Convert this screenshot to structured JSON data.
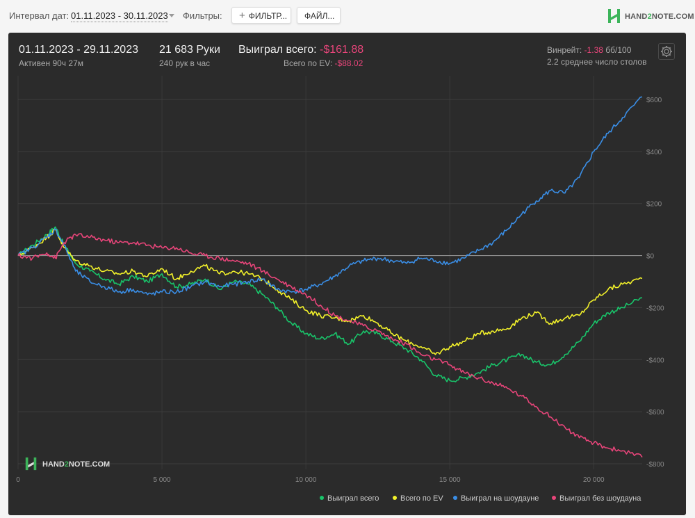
{
  "toolbar": {
    "date_label": "Интервал дат:",
    "date_value": "01.11.2023 - 30.11.2023",
    "filters_label": "Фильтры:",
    "filter_button": "ФИЛЬТР...",
    "file_button": "ФАЙЛ...",
    "brand_pre": "HAND",
    "brand_two": "2",
    "brand_post": "NOTE.COM"
  },
  "summary": {
    "period": "01.11.2023 - 29.11.2023",
    "active": "Активен 90ч 27м",
    "hands": "21 683 Руки",
    "hands_per_hour": "240 рук в час",
    "won_label": "Выиграл всего:",
    "won_value": "-$161.88",
    "ev_label": "Всего по EV:",
    "ev_value": "-$88.02",
    "winrate_label": "Винрейт:",
    "winrate_value": "-1.38",
    "winrate_unit": "бб/100",
    "tables": "2.2 среднее число столов"
  },
  "watermark": {
    "pre": "HAND",
    "two": "2",
    "post": "NOTE.COM"
  },
  "icons": {
    "settings": "gear-icon",
    "add": "plus-icon",
    "dropdown": "chevron-down-icon",
    "brand": "h2n-logo-icon"
  },
  "chart_data": {
    "type": "line",
    "xlabel": "",
    "ylabel": "",
    "xlim": [
      0,
      21683
    ],
    "ylim": [
      -800,
      600
    ],
    "x_ticks": [
      0,
      5000,
      10000,
      15000,
      20000
    ],
    "x_tick_labels": [
      "0",
      "5 000",
      "10 000",
      "15 000",
      "20 000"
    ],
    "y_ticks": [
      600,
      400,
      200,
      0,
      -200,
      -400,
      -600,
      -800
    ],
    "y_tick_labels": [
      "$600",
      "$400",
      "$200",
      "$0",
      "-$200",
      "-$400",
      "-$600",
      "-$800"
    ],
    "x": [
      0,
      500,
      1000,
      1300,
      1600,
      2000,
      2500,
      3000,
      3500,
      4000,
      4500,
      5000,
      5500,
      6000,
      6500,
      7000,
      7500,
      8000,
      8500,
      9000,
      9500,
      10000,
      10500,
      11000,
      11500,
      12000,
      12500,
      13000,
      13500,
      14000,
      14500,
      15000,
      15500,
      16000,
      16500,
      17000,
      17500,
      18000,
      18500,
      19000,
      19500,
      20000,
      20500,
      21000,
      21683
    ],
    "series": [
      {
        "name": "Выиграл всего",
        "color": "#19c46a",
        "values": [
          0,
          40,
          80,
          110,
          40,
          -30,
          -60,
          -90,
          -110,
          -80,
          -100,
          -70,
          -120,
          -110,
          -90,
          -130,
          -100,
          -110,
          -150,
          -200,
          -260,
          -300,
          -320,
          -300,
          -340,
          -290,
          -300,
          -330,
          -360,
          -400,
          -460,
          -480,
          -470,
          -450,
          -420,
          -400,
          -380,
          -410,
          -420,
          -380,
          -330,
          -260,
          -220,
          -200,
          -162
        ]
      },
      {
        "name": "Всего по EV",
        "color": "#f3f22a",
        "values": [
          0,
          30,
          70,
          100,
          30,
          -20,
          -40,
          -60,
          -70,
          -60,
          -80,
          -50,
          -90,
          -60,
          -40,
          -70,
          -60,
          -70,
          -90,
          -130,
          -170,
          -210,
          -230,
          -240,
          -250,
          -230,
          -260,
          -300,
          -330,
          -350,
          -380,
          -350,
          -330,
          -300,
          -290,
          -280,
          -240,
          -220,
          -260,
          -240,
          -230,
          -170,
          -130,
          -110,
          -88
        ]
      },
      {
        "name": "Выиграл на шоудауне",
        "color": "#3a8ee6",
        "values": [
          0,
          30,
          70,
          100,
          40,
          -60,
          -100,
          -120,
          -140,
          -130,
          -150,
          -140,
          -140,
          -120,
          -100,
          -120,
          -110,
          -100,
          -90,
          -130,
          -140,
          -130,
          -110,
          -80,
          -40,
          -20,
          -10,
          -20,
          -30,
          -10,
          -20,
          -30,
          -10,
          20,
          50,
          100,
          160,
          210,
          250,
          240,
          300,
          400,
          470,
          530,
          610
        ]
      },
      {
        "name": "Выиграл без шоудауна",
        "color": "#e8457a",
        "values": [
          0,
          -10,
          10,
          -10,
          50,
          80,
          70,
          60,
          50,
          50,
          40,
          30,
          30,
          10,
          0,
          -10,
          -20,
          -30,
          -60,
          -90,
          -120,
          -150,
          -190,
          -230,
          -250,
          -270,
          -290,
          -320,
          -340,
          -380,
          -400,
          -420,
          -450,
          -470,
          -490,
          -510,
          -540,
          -580,
          -620,
          -660,
          -700,
          -720,
          -740,
          -750,
          -775
        ]
      }
    ],
    "legend_position": "bottom-right",
    "grid": true
  }
}
